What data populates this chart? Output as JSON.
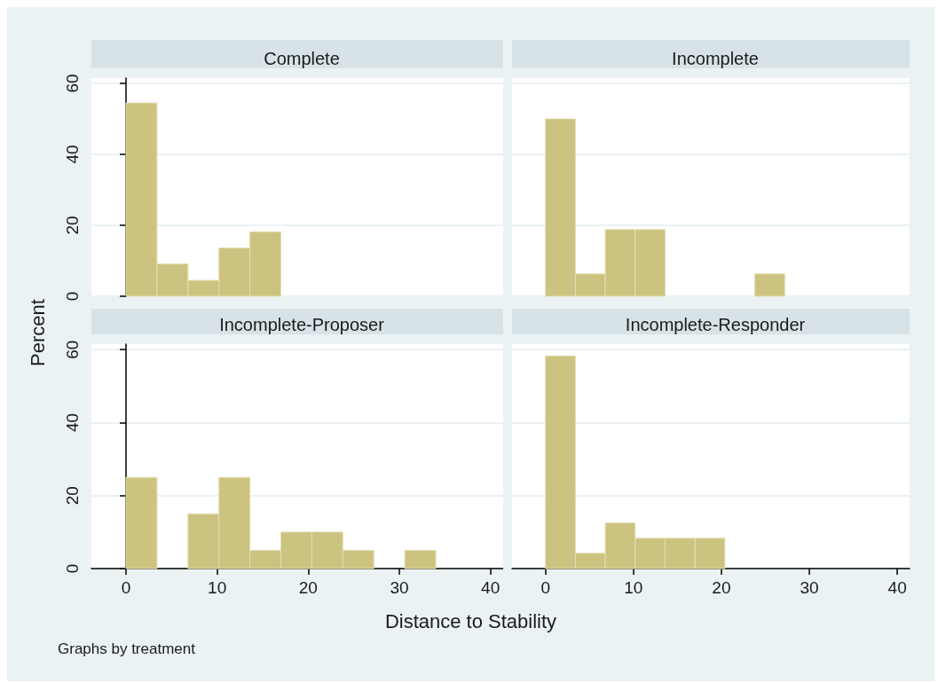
{
  "chart_data": [
    {
      "type": "histogram",
      "title": "Complete",
      "bins": [
        0,
        3.4,
        6.8,
        10.2,
        13.6,
        17
      ],
      "values": [
        54.5,
        9.1,
        4.5,
        13.6,
        18.2
      ],
      "color": "#cbc37f",
      "xlim": [
        -3.8,
        41.4
      ],
      "xticks": [
        0,
        10,
        20,
        30,
        40
      ],
      "ylim": [
        0,
        61.5
      ],
      "yticks": [
        0,
        20,
        40,
        60
      ],
      "grid": "y",
      "tick_labels": "y"
    },
    {
      "type": "histogram",
      "title": "Incomplete",
      "bins": [
        0,
        3.4,
        6.8,
        10.2,
        13.6,
        17,
        20.4,
        23.8,
        27.2
      ],
      "values": [
        50,
        6.3,
        18.8,
        18.8,
        0,
        0,
        0,
        6.3
      ],
      "color": "#cbc37f",
      "xlim": [
        -3.8,
        41.4
      ],
      "xticks": [
        0,
        10,
        20,
        30,
        40
      ],
      "ylim": [
        0,
        61.5
      ],
      "yticks": [
        0,
        20,
        40,
        60
      ],
      "grid": "y",
      "tick_labels": false
    },
    {
      "type": "histogram",
      "title": "Incomplete-Proposer",
      "xlabel": "Distance to Stability",
      "ylabel": "Percent",
      "annotations": [
        "Graphs by treatment"
      ],
      "bins": [
        0,
        3.4,
        6.8,
        10.2,
        13.6,
        17,
        20.4,
        23.8,
        27.2,
        30.6,
        34
      ],
      "values": [
        25,
        0,
        15,
        25,
        5,
        10,
        10,
        5,
        0,
        5
      ],
      "color": "#cbc37f",
      "xlim": [
        -3.8,
        41.4
      ],
      "xticks": [
        0,
        10,
        20,
        30,
        40
      ],
      "ylim": [
        0,
        61.5
      ],
      "yticks": [
        0,
        20,
        40,
        60
      ],
      "grid": "y"
    },
    {
      "type": "histogram",
      "title": "Incomplete-Responder",
      "bins": [
        0,
        3.4,
        6.8,
        10.2,
        13.6,
        17,
        20.4
      ],
      "values": [
        58.3,
        4.2,
        12.5,
        8.3,
        8.3,
        8.3
      ],
      "color": "#cbc37f",
      "xlim": [
        -3.8,
        41.4
      ],
      "xticks": [
        0,
        10,
        20,
        30,
        40
      ],
      "ylim": [
        0,
        61.5
      ],
      "yticks": [
        0,
        20,
        40,
        60
      ],
      "grid": "y",
      "tick_labels": "x"
    }
  ]
}
